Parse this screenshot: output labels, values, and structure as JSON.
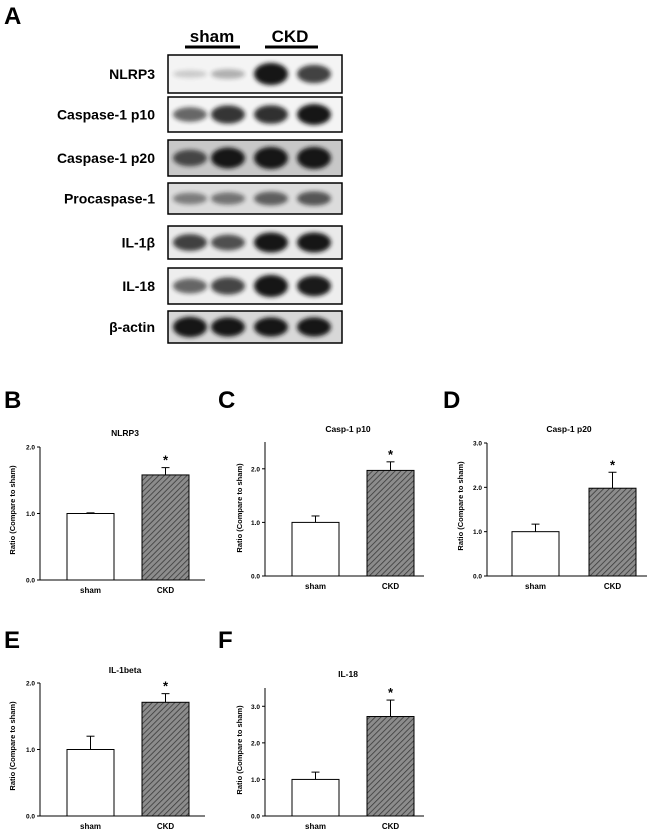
{
  "figure": {
    "panel_a_letter": "A",
    "group_labels": [
      "sham",
      "CKD"
    ],
    "blot_rows": [
      {
        "label": "NLRP3",
        "band_intensity": [
          0.1,
          0.22,
          0.95,
          0.72
        ],
        "background": "#f4f4f4"
      },
      {
        "label": "Caspase-1 p10",
        "band_intensity": [
          0.55,
          0.78,
          0.8,
          0.95
        ],
        "background": "#f4f4f4"
      },
      {
        "label": "Caspase-1 p20",
        "band_intensity": [
          0.65,
          0.92,
          1.0,
          1.0
        ],
        "background": "#c8c8c8"
      },
      {
        "label": "Procaspase-1",
        "band_intensity": [
          0.4,
          0.45,
          0.55,
          0.6
        ],
        "background": "#dcdcdc"
      },
      {
        "label": "IL-1β",
        "band_intensity": [
          0.72,
          0.65,
          0.95,
          0.95
        ],
        "background": "#eaeaea"
      },
      {
        "label": "IL-18",
        "band_intensity": [
          0.55,
          0.7,
          1.0,
          0.9
        ],
        "background": "#eeeeee"
      },
      {
        "label": "β-actin",
        "band_intensity": [
          1.0,
          0.92,
          0.92,
          0.92
        ],
        "background": "#d8d8d8"
      }
    ]
  },
  "chart_data": [
    {
      "panel": "B",
      "type": "bar",
      "title": "NLRP3",
      "categories": [
        "sham",
        "CKD"
      ],
      "values": [
        1.0,
        1.58
      ],
      "errors": [
        0.01,
        0.11
      ],
      "significance": [
        "",
        "*"
      ],
      "ylabel": "Ratio (Compare to sham)",
      "ylim": [
        0,
        2.0
      ],
      "yticks": [
        0,
        1.0,
        2.0
      ],
      "ytick_labels": [
        "0.0",
        "1.0",
        "2.0"
      ]
    },
    {
      "panel": "C",
      "type": "bar",
      "title": "Casp-1 p10",
      "categories": [
        "sham",
        "CKD"
      ],
      "values": [
        1.0,
        1.97
      ],
      "errors": [
        0.12,
        0.16
      ],
      "significance": [
        "",
        "*"
      ],
      "ylabel": "Ratio (Compare to sham)",
      "ylim": [
        0,
        2.5
      ],
      "yticks": [
        0,
        1.0,
        2.0
      ],
      "ytick_labels": [
        "0.0",
        "1.0",
        "2.0"
      ]
    },
    {
      "panel": "D",
      "type": "bar",
      "title": "Casp-1 p20",
      "categories": [
        "sham",
        "CKD"
      ],
      "values": [
        1.0,
        1.98
      ],
      "errors": [
        0.17,
        0.36
      ],
      "significance": [
        "",
        "*"
      ],
      "ylabel": "Ratio (Compare to sham)",
      "ylim": [
        0,
        3.0
      ],
      "yticks": [
        0,
        1.0,
        2.0,
        3.0
      ],
      "ytick_labels": [
        "0.0",
        "1.0",
        "2.0",
        "3.0"
      ]
    },
    {
      "panel": "E",
      "type": "bar",
      "title": "IL-1beta",
      "categories": [
        "sham",
        "CKD"
      ],
      "values": [
        1.0,
        1.71
      ],
      "errors": [
        0.2,
        0.13
      ],
      "significance": [
        "",
        "*"
      ],
      "ylabel": "Ratio (Compare to sham)",
      "ylim": [
        0,
        2.0
      ],
      "yticks": [
        0,
        1.0,
        2.0
      ],
      "ytick_labels": [
        "0.0",
        "1.0",
        "2.0"
      ]
    },
    {
      "panel": "F",
      "type": "bar",
      "title": "IL-18",
      "categories": [
        "sham",
        "CKD"
      ],
      "values": [
        1.0,
        2.72
      ],
      "errors": [
        0.2,
        0.45
      ],
      "significance": [
        "",
        "*"
      ],
      "ylabel": "Ratio (Compare to sham)",
      "ylim": [
        0,
        3.5
      ],
      "yticks": [
        0,
        1.0,
        2.0,
        3.0
      ],
      "ytick_labels": [
        "0.0",
        "1.0",
        "2.0",
        "3.0"
      ]
    }
  ],
  "colors": {
    "sham_fill": "#ffffff",
    "ckd_fill": "#8c8c8c",
    "ckd_hatch": "#3a3a3a",
    "band": "#141414"
  }
}
